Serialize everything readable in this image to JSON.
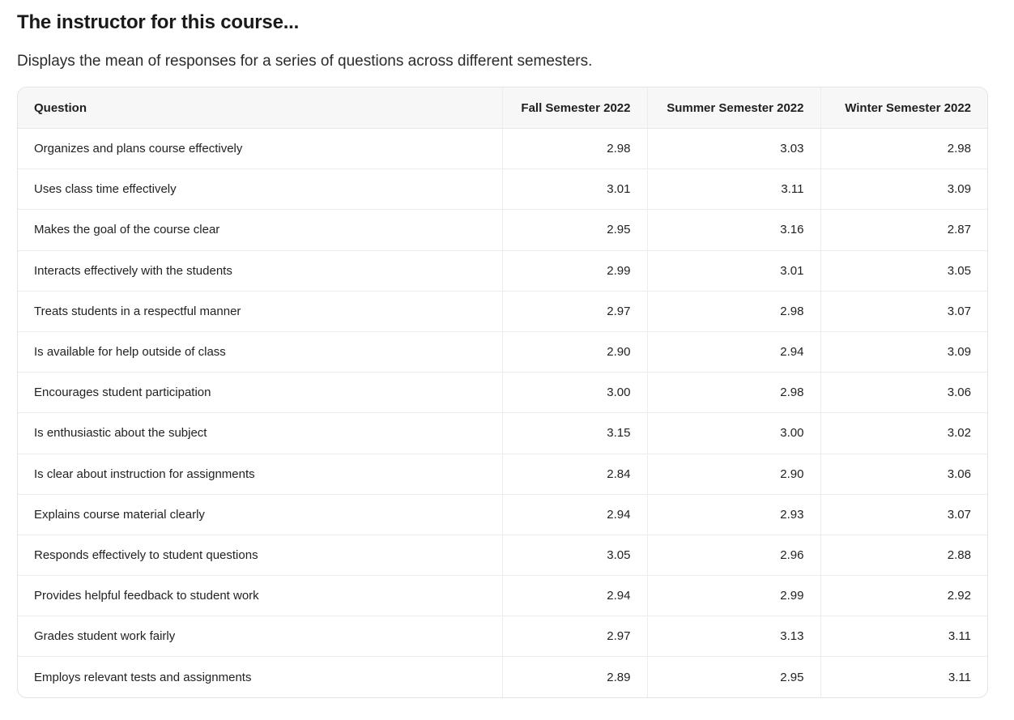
{
  "title": "The instructor for this course...",
  "subtitle": "Displays the mean of responses for a series of questions across different semesters.",
  "table": {
    "headers": [
      "Question",
      "Fall Semester 2022",
      "Summer Semester 2022",
      "Winter Semester 2022"
    ],
    "rows": [
      {
        "question": "Organizes and plans course effectively",
        "fall": "2.98",
        "summer": "3.03",
        "winter": "2.98"
      },
      {
        "question": "Uses class time effectively",
        "fall": "3.01",
        "summer": "3.11",
        "winter": "3.09"
      },
      {
        "question": "Makes the goal of the course clear",
        "fall": "2.95",
        "summer": "3.16",
        "winter": "2.87"
      },
      {
        "question": "Interacts effectively with the students",
        "fall": "2.99",
        "summer": "3.01",
        "winter": "3.05"
      },
      {
        "question": "Treats students in a respectful manner",
        "fall": "2.97",
        "summer": "2.98",
        "winter": "3.07"
      },
      {
        "question": "Is available for help outside of class",
        "fall": "2.90",
        "summer": "2.94",
        "winter": "3.09"
      },
      {
        "question": "Encourages student participation",
        "fall": "3.00",
        "summer": "2.98",
        "winter": "3.06"
      },
      {
        "question": "Is enthusiastic about the subject",
        "fall": "3.15",
        "summer": "3.00",
        "winter": "3.02"
      },
      {
        "question": "Is clear about instruction for assignments",
        "fall": "2.84",
        "summer": "2.90",
        "winter": "3.06"
      },
      {
        "question": "Explains course material clearly",
        "fall": "2.94",
        "summer": "2.93",
        "winter": "3.07"
      },
      {
        "question": "Responds effectively to student questions",
        "fall": "3.05",
        "summer": "2.96",
        "winter": "2.88"
      },
      {
        "question": "Provides helpful feedback to student work",
        "fall": "2.94",
        "summer": "2.99",
        "winter": "2.92"
      },
      {
        "question": "Grades student work fairly",
        "fall": "2.97",
        "summer": "3.13",
        "winter": "3.11"
      },
      {
        "question": "Employs relevant tests and assignments",
        "fall": "2.89",
        "summer": "2.95",
        "winter": "3.11"
      }
    ]
  }
}
